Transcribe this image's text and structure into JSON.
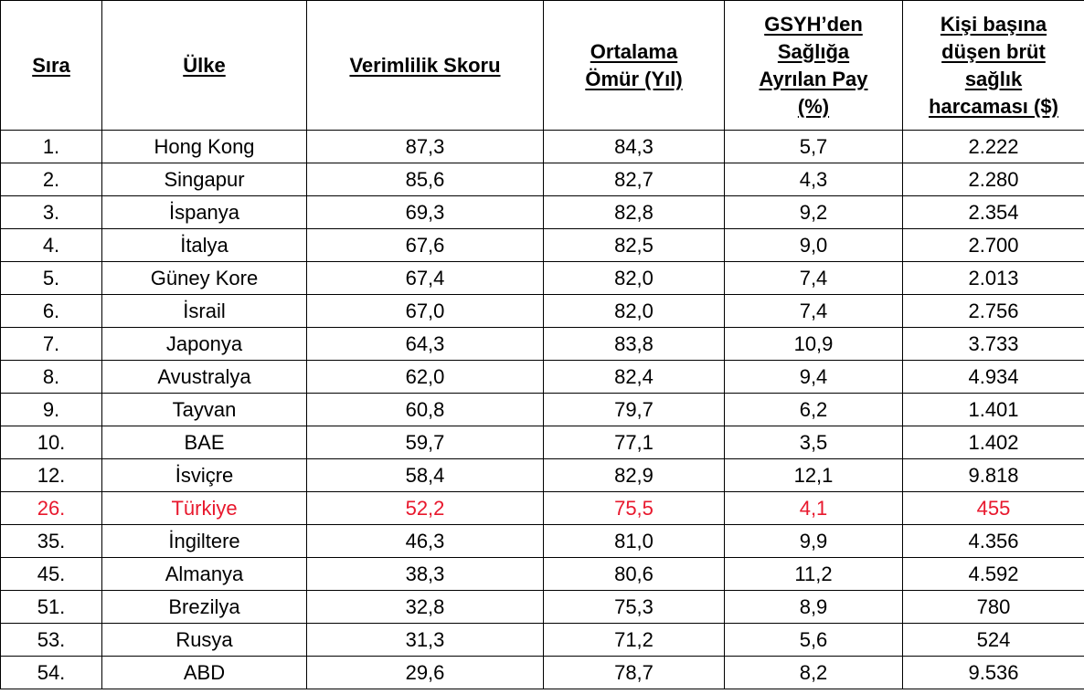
{
  "table": {
    "headers": [
      "Sıra",
      "Ülke",
      "Verimlilik Skoru",
      "Ortalama Ömür (Yıl)",
      "GSYH’den Sağlığa Ayrılan Pay (%)",
      "Kişi başına düşen brüt sağlık harcaması ($)"
    ],
    "highlight_color": "#e8182d",
    "rows": [
      {
        "rank": "1.",
        "country": "Hong Kong",
        "efficiency": "87,3",
        "life": "84,3",
        "gdp_share": "5,7",
        "spending": "2.222",
        "highlight": false
      },
      {
        "rank": "2.",
        "country": "Singapur",
        "efficiency": "85,6",
        "life": "82,7",
        "gdp_share": "4,3",
        "spending": "2.280",
        "highlight": false
      },
      {
        "rank": "3.",
        "country": "İspanya",
        "efficiency": "69,3",
        "life": "82,8",
        "gdp_share": "9,2",
        "spending": "2.354",
        "highlight": false
      },
      {
        "rank": "4.",
        "country": "İtalya",
        "efficiency": "67,6",
        "life": "82,5",
        "gdp_share": "9,0",
        "spending": "2.700",
        "highlight": false
      },
      {
        "rank": "5.",
        "country": "Güney Kore",
        "efficiency": "67,4",
        "life": "82,0",
        "gdp_share": "7,4",
        "spending": "2.013",
        "highlight": false
      },
      {
        "rank": "6.",
        "country": "İsrail",
        "efficiency": "67,0",
        "life": "82,0",
        "gdp_share": "7,4",
        "spending": "2.756",
        "highlight": false
      },
      {
        "rank": "7.",
        "country": "Japonya",
        "efficiency": "64,3",
        "life": "83,8",
        "gdp_share": "10,9",
        "spending": "3.733",
        "highlight": false
      },
      {
        "rank": "8.",
        "country": "Avustralya",
        "efficiency": "62,0",
        "life": "82,4",
        "gdp_share": "9,4",
        "spending": "4.934",
        "highlight": false
      },
      {
        "rank": "9.",
        "country": "Tayvan",
        "efficiency": "60,8",
        "life": "79,7",
        "gdp_share": "6,2",
        "spending": "1.401",
        "highlight": false
      },
      {
        "rank": "10.",
        "country": "BAE",
        "efficiency": "59,7",
        "life": "77,1",
        "gdp_share": "3,5",
        "spending": "1.402",
        "highlight": false
      },
      {
        "rank": "12.",
        "country": "İsviçre",
        "efficiency": "58,4",
        "life": "82,9",
        "gdp_share": "12,1",
        "spending": "9.818",
        "highlight": false
      },
      {
        "rank": "26.",
        "country": "Türkiye",
        "efficiency": "52,2",
        "life": "75,5",
        "gdp_share": "4,1",
        "spending": "455",
        "highlight": true
      },
      {
        "rank": "35.",
        "country": "İngiltere",
        "efficiency": "46,3",
        "life": "81,0",
        "gdp_share": "9,9",
        "spending": "4.356",
        "highlight": false
      },
      {
        "rank": "45.",
        "country": "Almanya",
        "efficiency": "38,3",
        "life": "80,6",
        "gdp_share": "11,2",
        "spending": "4.592",
        "highlight": false
      },
      {
        "rank": "51.",
        "country": "Brezilya",
        "efficiency": "32,8",
        "life": "75,3",
        "gdp_share": "8,9",
        "spending": "780",
        "highlight": false
      },
      {
        "rank": "53.",
        "country": "Rusya",
        "efficiency": "31,3",
        "life": "71,2",
        "gdp_share": "5,6",
        "spending": "524",
        "highlight": false
      },
      {
        "rank": "54.",
        "country": "ABD",
        "efficiency": "29,6",
        "life": "78,7",
        "gdp_share": "8,2",
        "spending": "9.536",
        "highlight": false
      }
    ]
  }
}
